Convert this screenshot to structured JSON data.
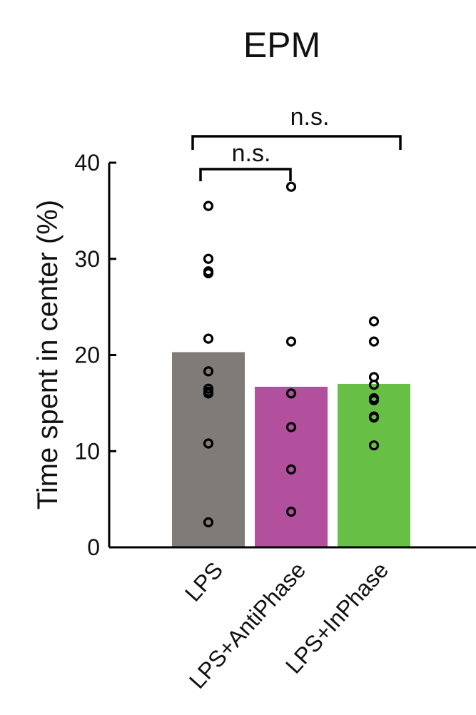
{
  "chart_data": {
    "type": "bar",
    "title": "EPM",
    "ylabel": "Time spent in center (%)",
    "xlabel": "",
    "ylim": [
      0,
      40
    ],
    "yticks": [
      0,
      10,
      20,
      30,
      40
    ],
    "categories": [
      "LPS",
      "LPS+AntiPhase",
      "LPS+InPhase"
    ],
    "values": [
      20.3,
      16.7,
      17.0
    ],
    "colors": [
      "#7f7b78",
      "#b3509d",
      "#67bf46"
    ],
    "points": [
      [
        35.5,
        30.0,
        28.7,
        28.5,
        21.7,
        18.3,
        16.5,
        16.2,
        16.0,
        10.8,
        2.6
      ],
      [
        37.5,
        21.4,
        16.0,
        12.5,
        8.1,
        3.7
      ],
      [
        23.5,
        21.4,
        17.7,
        16.9,
        15.5,
        15.3,
        13.6,
        13.5,
        10.6
      ]
    ],
    "significance": [
      {
        "from": 0,
        "to": 1,
        "label": "n.s."
      },
      {
        "from": 0,
        "to": 2,
        "label": "n.s."
      }
    ],
    "grid": false,
    "legend": "none"
  }
}
